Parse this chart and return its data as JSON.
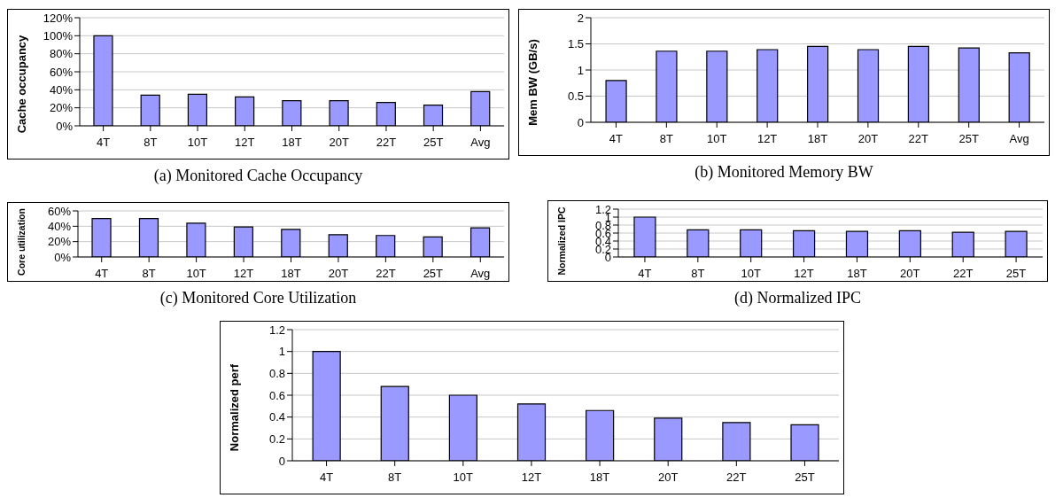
{
  "chart_data": [
    {
      "type": "bar",
      "title": "(a) Monitored Cache Occupancy",
      "ylabel": "Cache occupancy",
      "categories": [
        "4T",
        "8T",
        "10T",
        "12T",
        "18T",
        "20T",
        "22T",
        "25T",
        "Avg"
      ],
      "values": [
        100,
        34,
        35,
        32,
        28,
        28,
        26,
        23,
        38
      ],
      "color": "#9999ff",
      "ylim": [
        0,
        120
      ],
      "yticks": [
        {
          "value": 0,
          "label": "0%"
        },
        {
          "value": 20,
          "label": "20%"
        },
        {
          "value": 40,
          "label": "40%"
        },
        {
          "value": 60,
          "label": "60%"
        },
        {
          "value": 80,
          "label": "80%"
        },
        {
          "value": 100,
          "label": "100%"
        },
        {
          "value": 120,
          "label": "120%"
        }
      ],
      "grid": "y"
    },
    {
      "type": "bar",
      "title": "(b) Monitored Memory BW",
      "ylabel": "Mem BW (GB/s)",
      "categories": [
        "4T",
        "8T",
        "10T",
        "12T",
        "18T",
        "20T",
        "22T",
        "25T",
        "Avg"
      ],
      "values": [
        0.8,
        1.36,
        1.36,
        1.39,
        1.45,
        1.39,
        1.45,
        1.42,
        1.33
      ],
      "color": "#9999ff",
      "ylim": [
        0,
        2
      ],
      "yticks": [
        0,
        0.5,
        1,
        1.5,
        2
      ],
      "grid": "y"
    },
    {
      "type": "bar",
      "title": "(c) Monitored Core Utilization",
      "ylabel": "Core utilization",
      "categories": [
        "4T",
        "8T",
        "10T",
        "12T",
        "18T",
        "20T",
        "22T",
        "25T",
        "Avg"
      ],
      "values": [
        50,
        50,
        44,
        39,
        36,
        29,
        28,
        26,
        38
      ],
      "color": "#9999ff",
      "ylim": [
        0,
        60
      ],
      "yticks": [
        {
          "value": 0,
          "label": "0%"
        },
        {
          "value": 20,
          "label": "20%"
        },
        {
          "value": 40,
          "label": "40%"
        },
        {
          "value": 60,
          "label": "60%"
        }
      ],
      "grid": "y"
    },
    {
      "type": "bar",
      "title": "(d) Normalized IPC",
      "ylabel": "Normalized IPC",
      "categories": [
        "4T",
        "8T",
        "10T",
        "12T",
        "18T",
        "20T",
        "22T",
        "25T"
      ],
      "values": [
        1.0,
        0.68,
        0.68,
        0.66,
        0.64,
        0.66,
        0.62,
        0.64
      ],
      "color": "#9999ff",
      "ylim": [
        0,
        1.2
      ],
      "yticks": [
        0,
        0.2,
        0.4,
        0.6,
        0.8,
        1,
        1.2
      ],
      "grid": "y"
    },
    {
      "type": "bar",
      "ylabel": "Normalized perf",
      "categories": [
        "4T",
        "8T",
        "10T",
        "12T",
        "18T",
        "20T",
        "22T",
        "25T"
      ],
      "values": [
        1.0,
        0.68,
        0.6,
        0.52,
        0.46,
        0.39,
        0.35,
        0.33
      ],
      "color": "#9999ff",
      "ylim": [
        0,
        1.2
      ],
      "yticks": [
        0,
        0.2,
        0.4,
        0.6,
        0.8,
        1,
        1.2
      ],
      "grid": "y"
    }
  ]
}
